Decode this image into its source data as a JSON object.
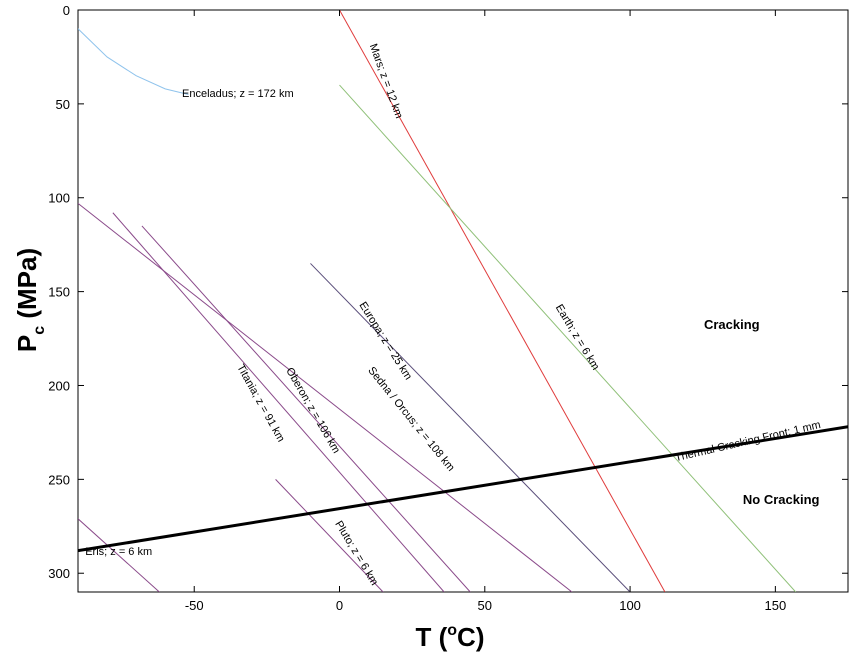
{
  "chart_data": {
    "type": "line",
    "xlabel_main": "T (",
    "xlabel_sup": "o",
    "xlabel_end": "C)",
    "ylabel_main": "P",
    "ylabel_sub": "c",
    "ylabel_end": " (MPa)",
    "xlim": [
      -90,
      175
    ],
    "ylim": [
      0,
      310
    ],
    "y_inverted": true,
    "grid": false,
    "x_ticks": [
      -50,
      0,
      50,
      100,
      150
    ],
    "y_ticks": [
      0,
      50,
      100,
      150,
      200,
      250,
      300
    ],
    "regions": [
      {
        "name": "cracking-label",
        "label": "Cracking",
        "x": 135,
        "y": 170
      },
      {
        "name": "no-cracking-label",
        "label": "No Cracking",
        "x": 152,
        "y": 263
      }
    ],
    "series": [
      {
        "key": "enceladus",
        "name": "Enceladus; z = 172 km",
        "color": "#8fc3ec",
        "width": 1,
        "points": [
          [
            -90,
            10
          ],
          [
            -80,
            25
          ],
          [
            -70,
            35
          ],
          [
            -60,
            42
          ],
          [
            -52,
            45
          ]
        ],
        "label_at": [
          -35,
          48
        ],
        "label_angle": 0
      },
      {
        "key": "mars",
        "name": "Mars; z = 12 km",
        "color": "#e03c3c",
        "width": 1,
        "points": [
          [
            0,
            0
          ],
          [
            112,
            310
          ]
        ],
        "label_at": [
          14,
          39
        ],
        "label_angle": 70
      },
      {
        "key": "earth",
        "name": "Earth; z = 6 km",
        "color": "#8fc078",
        "width": 1,
        "points": [
          [
            0,
            40
          ],
          [
            157,
            310
          ]
        ],
        "label_at": [
          80,
          176
        ],
        "label_angle": 59
      },
      {
        "key": "europa",
        "name": "Europa; z = 25 km",
        "color": "#5a4e7a",
        "width": 1,
        "points": [
          [
            -10,
            135
          ],
          [
            100,
            310
          ]
        ],
        "label_at": [
          14,
          178
        ],
        "label_angle": 58
      },
      {
        "key": "sedna",
        "name": "Sedna / Orcus; z = 108 km",
        "color": "#8a4a8a",
        "width": 1,
        "points": [
          [
            -90,
            103
          ],
          [
            80,
            310
          ]
        ],
        "label_at": [
          23,
          220
        ],
        "label_angle": 51
      },
      {
        "key": "oberon",
        "name": "Oberon; z = 106 km",
        "color": "#8a4a8a",
        "width": 1,
        "points": [
          [
            -68,
            115
          ],
          [
            45,
            310
          ]
        ],
        "label_at": [
          -11,
          215
        ],
        "label_angle": 60
      },
      {
        "key": "titania",
        "name": "Titania; z = 91 km",
        "color": "#8a4a8a",
        "width": 1,
        "points": [
          [
            -78,
            108
          ],
          [
            36,
            310
          ]
        ],
        "label_at": [
          -29,
          211
        ],
        "label_angle": 61
      },
      {
        "key": "pluto",
        "name": "Pluto; z = 6 km",
        "color": "#8a4a8a",
        "width": 1,
        "points": [
          [
            -22,
            250
          ],
          [
            15,
            310
          ]
        ],
        "label_at": [
          4,
          291
        ],
        "label_angle": 59
      },
      {
        "key": "eris",
        "name": "Eris; z = 6 km",
        "color": "#8a4a8a",
        "width": 1,
        "points": [
          [
            -90,
            271
          ],
          [
            -62,
            310
          ]
        ],
        "label_at": [
          -76,
          292
        ],
        "label_angle": 0
      },
      {
        "key": "front",
        "name": "Thermal Cracking Front: 1 mm",
        "color": "#000000",
        "width": 3,
        "points": [
          [
            -90,
            288
          ],
          [
            175,
            222
          ]
        ],
        "label_at": [
          141,
          233
        ],
        "label_angle": -13
      }
    ]
  }
}
